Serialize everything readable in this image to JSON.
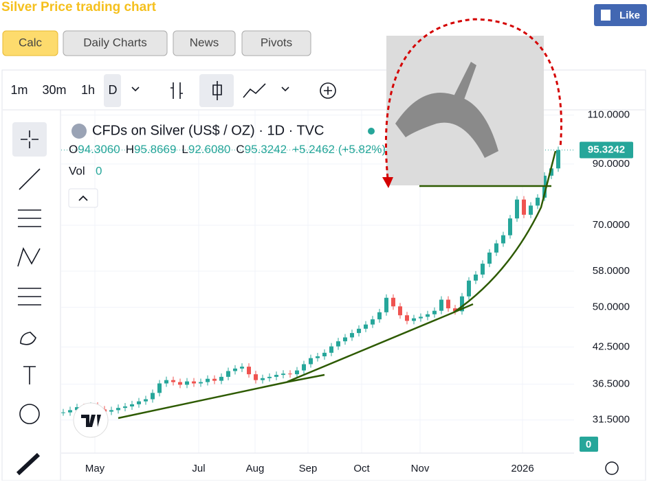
{
  "header": {
    "title": "Silver Price trading chart",
    "like": "Like"
  },
  "tabs": [
    "Calc",
    "Daily Charts",
    "News",
    "Pivots"
  ],
  "toolbar": {
    "intervals": [
      "1m",
      "30m",
      "1h",
      "D"
    ]
  },
  "chart": {
    "type": "candlestick",
    "title": "CFDs on Silver (US$ / OZ) · 1D · TVC",
    "ohlc": [
      {
        "key": "O",
        "value": "94.3060"
      },
      {
        "key": "H",
        "value": "95.8669"
      },
      {
        "key": "L",
        "value": "92.6080"
      },
      {
        "key": "C",
        "value": "95.3242"
      }
    ],
    "change": "+5.2462 (+5.82%)",
    "volume": {
      "label": "Vol",
      "value": "0"
    },
    "volume_badge": "0",
    "log_scale": true,
    "up_color": "#26a69a",
    "down_color": "#ef5350",
    "ylim": [
      27.5,
      112.4
    ],
    "yticks": [
      {
        "value": 110,
        "label": "110.0000"
      },
      {
        "value": 90,
        "label": "90.0000"
      },
      {
        "value": 70,
        "label": "70.0000"
      },
      {
        "value": 58,
        "label": "58.0000"
      },
      {
        "value": 50,
        "label": "50.0000"
      },
      {
        "value": 42.5,
        "label": "42.5000"
      },
      {
        "value": 36.5,
        "label": "36.5000"
      },
      {
        "value": 31.5,
        "label": "31.5000"
      }
    ],
    "xlim": [
      0,
      72
    ],
    "xticks": [
      {
        "value": 4.6,
        "label": "May"
      },
      {
        "value": 19.7,
        "label": "Jul"
      },
      {
        "value": 27.9,
        "label": "Aug"
      },
      {
        "value": 35.6,
        "label": "Sep"
      },
      {
        "value": 43.4,
        "label": "Oct"
      },
      {
        "value": 51.9,
        "label": "Nov"
      },
      {
        "value": 66.8,
        "label": "2026"
      }
    ],
    "closes": [
      32.5,
      32.8,
      33.2,
      33.0,
      33.4,
      32.9,
      32.6,
      32.8,
      33.1,
      33.3,
      33.6,
      34.0,
      34.3,
      35.2,
      36.6,
      37.1,
      36.8,
      36.4,
      36.9,
      36.6,
      36.8,
      37.3,
      37.0,
      37.6,
      38.5,
      38.9,
      39.2,
      38.0,
      37.1,
      37.4,
      37.6,
      37.9,
      38.1,
      38.0,
      38.6,
      39.6,
      40.6,
      40.9,
      41.5,
      42.6,
      43.5,
      44.2,
      45.0,
      45.8,
      46.6,
      47.6,
      49.0,
      52.0,
      50.2,
      48.4,
      47.3,
      47.8,
      48.1,
      48.6,
      49.3,
      51.6,
      49.8,
      49.2,
      52.3,
      55.8,
      57.2,
      59.8,
      62.6,
      65.0,
      67.2,
      72.0,
      77.8,
      73.1,
      75.9,
      78.4,
      85.8,
      88.4,
      95.3242
    ]
  }
}
